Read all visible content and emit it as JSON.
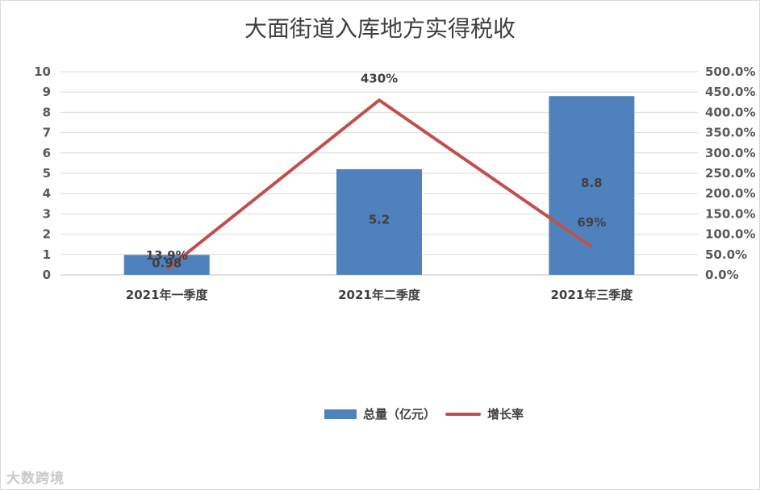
{
  "chart_data": {
    "type": "bar",
    "title": "大面街道入库地方实得税收",
    "categories": [
      "2021年一季度",
      "2021年二季度",
      "2021年三季度"
    ],
    "series": [
      {
        "name": "总量（亿元）",
        "type": "bar",
        "axis": "left",
        "color": "#4f81bd",
        "values": [
          0.98,
          5.2,
          8.8
        ],
        "labels": [
          "0.98",
          "5.2",
          "8.8"
        ]
      },
      {
        "name": "增长率",
        "type": "line",
        "axis": "right",
        "color": "#c0504d",
        "values": [
          13.9,
          430,
          69
        ],
        "labels": [
          "13.9%",
          "430%",
          "69%"
        ]
      }
    ],
    "y_left": {
      "min": 0,
      "max": 10,
      "ticks": [
        "0",
        "1",
        "2",
        "3",
        "4",
        "5",
        "6",
        "7",
        "8",
        "9",
        "10"
      ]
    },
    "y_right": {
      "min": 0,
      "max": 500,
      "ticks": [
        "0.0%",
        "50.0%",
        "100.0%",
        "150.0%",
        "200.0%",
        "250.0%",
        "300.0%",
        "350.0%",
        "400.0%",
        "450.0%",
        "500.0%"
      ]
    },
    "grid": true,
    "legend": "bottom"
  },
  "legend": {
    "bar_label": "总量（亿元）",
    "line_label": "增长率"
  },
  "watermark": "大数跨境"
}
